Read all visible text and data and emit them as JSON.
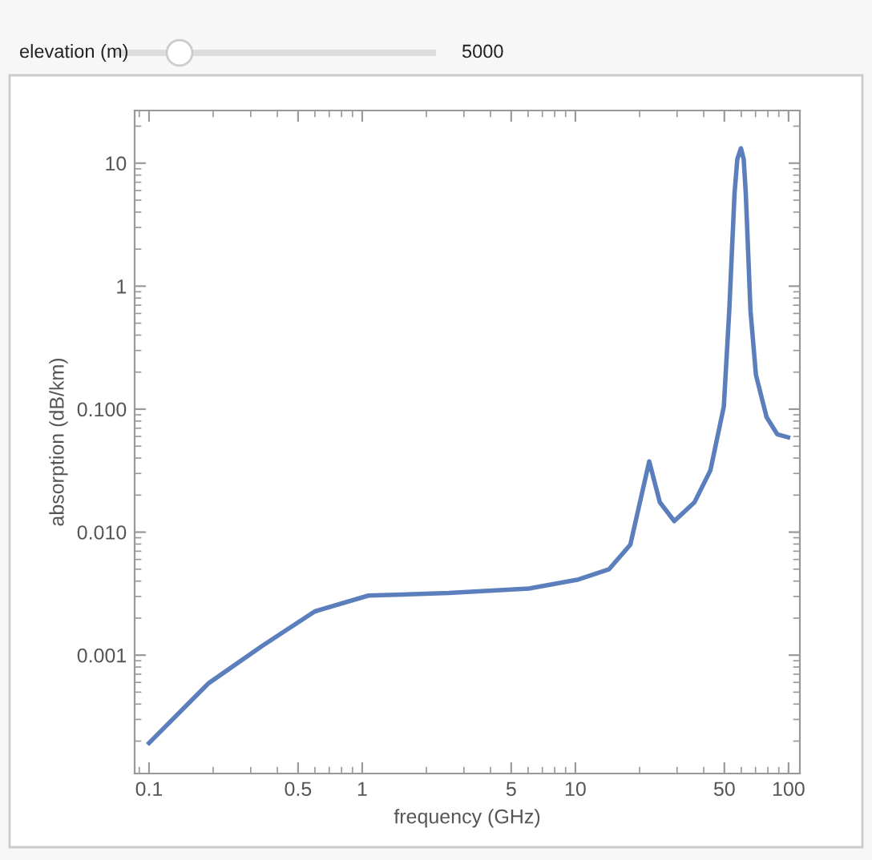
{
  "chart_data": {
    "type": "line",
    "xlabel": "frequency (GHz)",
    "ylabel": "absorption (dB/km)",
    "annotations": [
      "elevation (m)",
      "5000"
    ],
    "log": "xy",
    "grid": false,
    "legend": false,
    "marker": "none",
    "line_style": "solid",
    "xlim": [
      0.0856,
      113
    ],
    "ylim": [
      0.000109,
      26.8
    ],
    "xticks": [
      0.1,
      0.5,
      1,
      5,
      10,
      50,
      100
    ],
    "yticks": [
      {
        "value": 0.001,
        "label": "0.001"
      },
      {
        "value": 0.01,
        "label": "0.010"
      },
      {
        "value": 0.1,
        "label": "0.100"
      },
      {
        "value": 1,
        "label": "1"
      },
      {
        "value": 10,
        "label": "10"
      }
    ],
    "series": [
      {
        "color": "#5b7fbd",
        "x": [
          0.1,
          0.19,
          0.34,
          0.6,
          1.07,
          2.55,
          6.05,
          10.2,
          14.4,
          18.1,
          22.2,
          24.9,
          29.1,
          36.2,
          43,
          49.7,
          52.7,
          55.8,
          57.5,
          59.8,
          61.6,
          63,
          66.3,
          70.3,
          78.9,
          88.5,
          99.5
        ],
        "values": [
          0.000193,
          0.00059,
          0.00119,
          0.00227,
          0.00305,
          0.0032,
          0.00348,
          0.0041,
          0.005,
          0.0079,
          0.0376,
          0.0175,
          0.0123,
          0.0175,
          0.0318,
          0.105,
          0.63,
          5.7,
          10.8,
          13.2,
          10.8,
          5.7,
          0.63,
          0.19,
          0.086,
          0.0625,
          0.059
        ]
      }
    ]
  }
}
